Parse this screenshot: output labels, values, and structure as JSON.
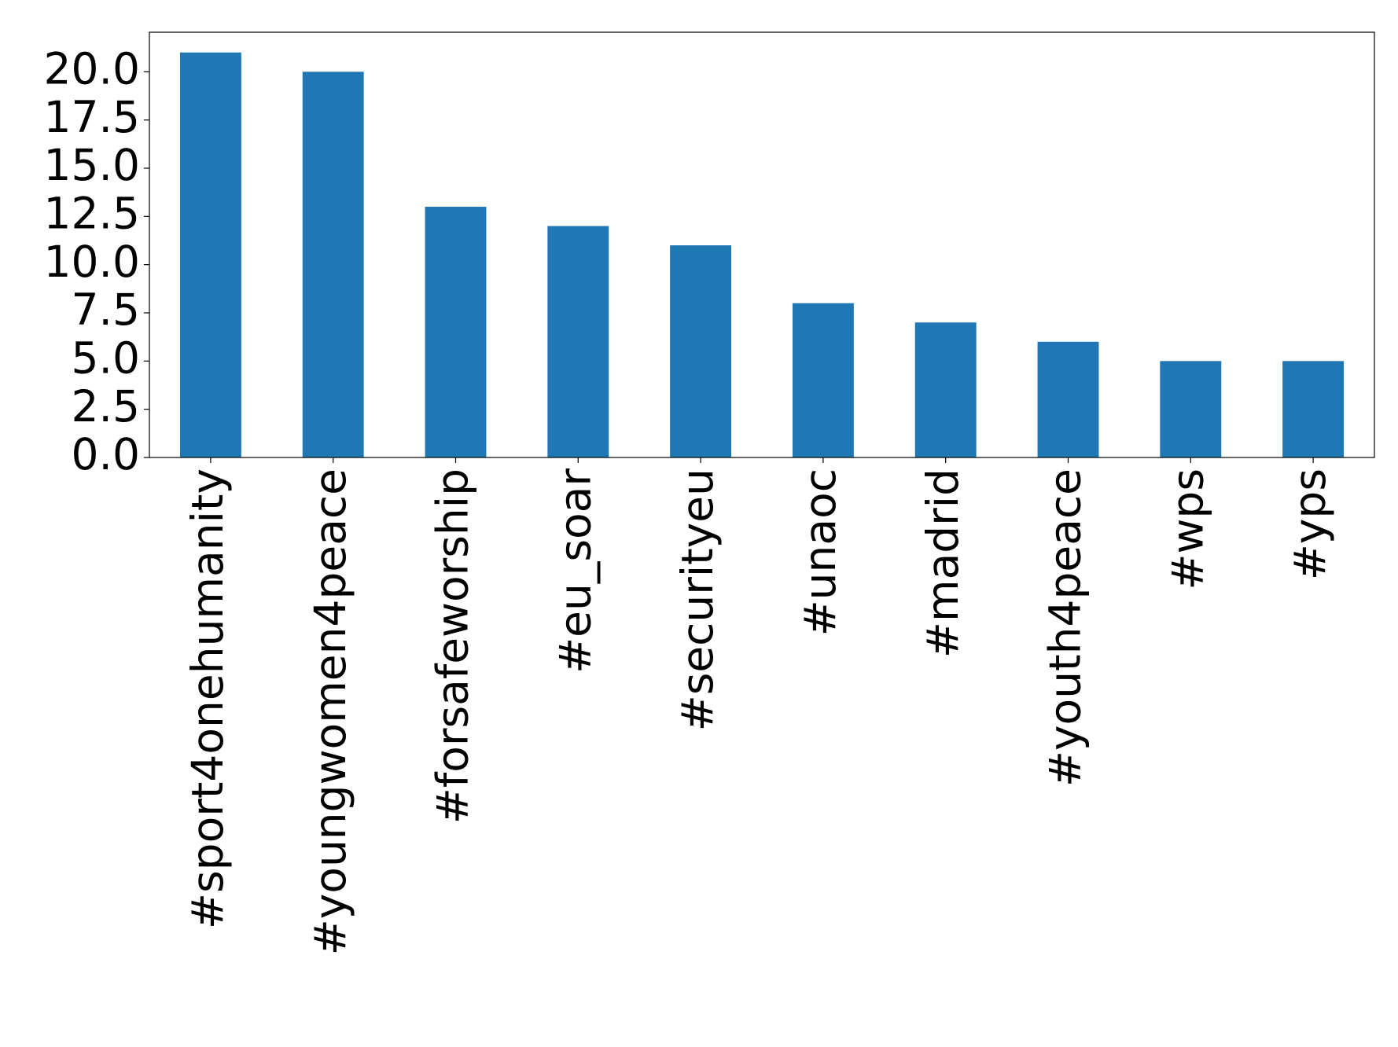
{
  "chart_data": {
    "type": "bar",
    "categories": [
      "#sport4onehumanity",
      "#youngwomen4peace",
      "#forsafeworship",
      "#eu_soar",
      "#securityeu",
      "#unaoc",
      "#madrid",
      "#youth4peace",
      "#wps",
      "#yps"
    ],
    "values": [
      21,
      20,
      13,
      12,
      11,
      8,
      7,
      6,
      5,
      5
    ],
    "color": "#1f77b4",
    "ylim": [
      0,
      22.05
    ],
    "yticks": [
      {
        "value": 0,
        "label": "0.0"
      },
      2.5,
      {
        "value": 5,
        "label": "5.0"
      },
      7.5,
      {
        "value": 10,
        "label": "10.0"
      },
      12.5,
      {
        "value": 15,
        "label": "15.0"
      },
      17.5,
      {
        "value": 20,
        "label": "20.0"
      }
    ],
    "grid": false
  }
}
